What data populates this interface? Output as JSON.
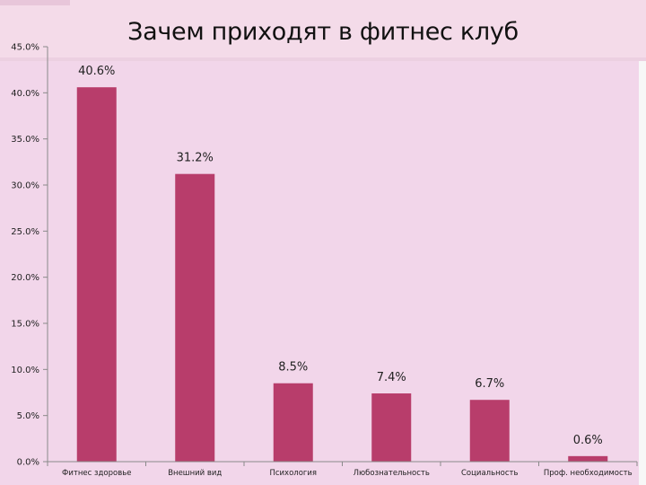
{
  "colors": {
    "bar": "#b83d6b",
    "background": "#f2d6ea",
    "axis": "#8a8a8a"
  },
  "chart_data": {
    "type": "bar",
    "title": "Зачем приходят в фитнес клуб",
    "categories": [
      "Фитнес здоровье",
      "Внешний вид",
      "Психология",
      "Любознательность",
      "Социальность",
      "Проф. необходимость"
    ],
    "values": [
      40.6,
      31.2,
      8.5,
      7.4,
      6.7,
      0.6
    ],
    "data_labels": [
      "40.6%",
      "31.2%",
      "8.5%",
      "7.4%",
      "6.7%",
      "0.6%"
    ],
    "y_ticks": [
      {
        "value": 0,
        "label": "0.0%"
      },
      {
        "value": 5,
        "label": "5.0%"
      },
      {
        "value": 10,
        "label": "10.0%"
      },
      {
        "value": 15,
        "label": "15.0%"
      },
      {
        "value": 20,
        "label": "20.0%"
      },
      {
        "value": 25,
        "label": "25.0%"
      },
      {
        "value": 30,
        "label": "30.0%"
      },
      {
        "value": 35,
        "label": "35.0%"
      },
      {
        "value": 40,
        "label": "40.0%"
      },
      {
        "value": 45,
        "label": "45.0%"
      }
    ],
    "ylim": [
      0,
      45
    ],
    "grid": false,
    "legend": "none"
  }
}
